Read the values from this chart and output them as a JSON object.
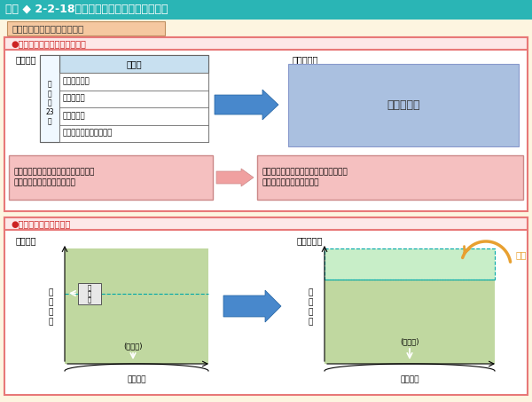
{
  "title": "図表 ◆ 2-2-18　総額裁量制導入に伴う改善点",
  "title_bg": "#2ab5b5",
  "title_color": "#ffffff",
  "bg_color": "#fdf5e0",
  "subtitle": "給与水準と教職員数の弾力化",
  "subtitle_bg": "#f5c8a0",
  "section1_title": "●給与の種類・額を自由に決定",
  "section1_bg": "#ffffff",
  "section1_border": "#e87878",
  "section2_title": "●教職員数を自由に決定",
  "section2_bg": "#ffffff",
  "section2_border": "#e87878",
  "table_header_bg": "#c8e0f0",
  "table_header": "給　料",
  "table_rows": [
    "期末勤勉手当",
    "教職調整額",
    "管理職手当",
    "住居手当・通勤手当　等"
  ],
  "table_left_label": "諸\n手\n当\n23\n種",
  "after_box_color": "#aac0e0",
  "after_box_text": "総額裁量制",
  "pink_box1_text": "給料・諸手当の費目ごとに国の水準を\n超える額は国庫負担の対象外",
  "pink_box2_text": "費目ごとの国庫負担限度額がなくなり，\n総額の中で自由に使用可能",
  "pink_box_bg": "#f5c0c0",
  "green_area_color": "#c0d8a0",
  "dashed_border_color": "#00a8a8",
  "kokujun_label": "国\n準\n拠",
  "hyojunho_label": "(標準法)",
  "kyuyo_label": "給\n与\n水\n準",
  "kyoshokuin_label": "教職員数",
  "katsuyo_label": "活用",
  "orange_arrow_color": "#e8a030",
  "blue_arrow_color": "#4888cc"
}
